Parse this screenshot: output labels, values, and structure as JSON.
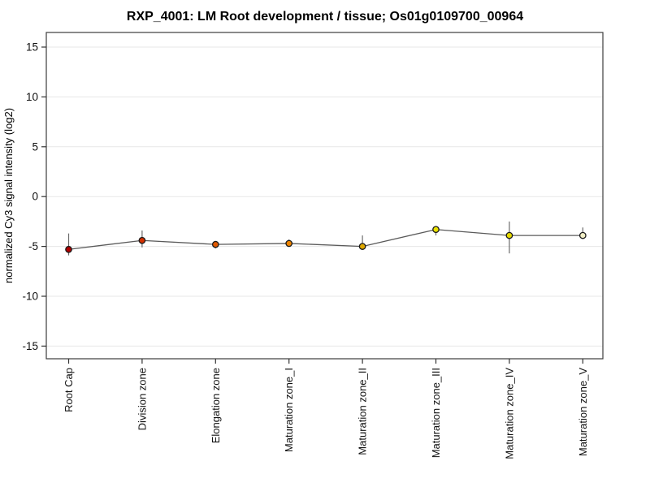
{
  "title": "RXP_4001: LM Root development / tissue; Os01g0109700_00964",
  "chart_data": {
    "type": "line",
    "title": "RXP_4001: LM Root development / tissue; Os01g0109700_00964",
    "xlabel": "",
    "ylabel": "normalized Cy3 signal intensity (log2)",
    "ylim": [
      -16.4,
      16.5
    ],
    "yticks": [
      15,
      10,
      5,
      0,
      -5,
      -10,
      -15
    ],
    "grid": true,
    "legend_position": "none",
    "x_tick_label_rotation_deg": 90,
    "categories": [
      "Root Cap",
      "Division zone",
      "Elongation zone",
      "Maturation zone_I",
      "Maturation zone_II",
      "Maturation zone_III",
      "Maturation zone_IV",
      "Maturation zone_V"
    ],
    "series": [
      {
        "name": "normalized Cy3 signal intensity (log2)",
        "values": [
          -5.3,
          -4.4,
          -4.8,
          -4.7,
          -5.0,
          -3.3,
          -3.9,
          -3.9
        ],
        "error_low": [
          -5.9,
          -5.1,
          -5.2,
          -5.0,
          -5.3,
          -3.9,
          -5.7,
          -4.2
        ],
        "error_high": [
          -3.7,
          -3.4,
          -4.5,
          -4.3,
          -3.9,
          -3.1,
          -2.5,
          -3.1
        ],
        "point_colors": [
          "#b00000",
          "#d43000",
          "#e05800",
          "#ee8400",
          "#dfa800",
          "#e9e000",
          "#e6da00",
          "#f2efc6"
        ]
      }
    ],
    "line_color": "#5a5a5a",
    "errorbar_color": "#6b6b6b",
    "point_outline_color": "#1a1a1a",
    "gridline_color": "#e7e7e7",
    "frame_color": "#3c3c3c",
    "tick_color": "#333333",
    "background_color": "#ffffff"
  }
}
